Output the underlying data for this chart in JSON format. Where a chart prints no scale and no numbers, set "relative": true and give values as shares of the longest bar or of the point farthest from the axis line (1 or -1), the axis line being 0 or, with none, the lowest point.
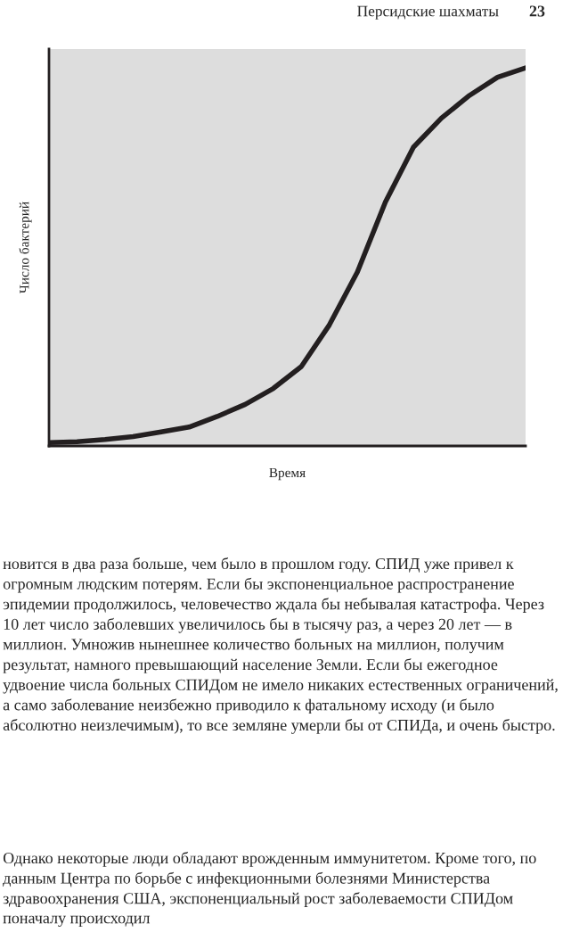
{
  "chart_data": {
    "type": "line",
    "relative": true,
    "title": "Персидские шахматы",
    "xlabel": "Время",
    "ylabel": "Число бактерий",
    "categories": [
      null,
      null,
      null,
      null,
      null,
      null,
      null,
      null,
      null,
      null,
      null,
      null,
      null,
      null,
      null,
      null,
      null,
      null
    ],
    "series": [
      {
        "color": "#231f20",
        "values": [
          0.009,
          0.011,
          0.017,
          0.025,
          0.037,
          0.05,
          0.078,
          0.11,
          0.152,
          0.21,
          0.32,
          0.46,
          0.645,
          0.79,
          0.867,
          0.927,
          0.975,
          1.0
        ]
      }
    ],
    "legend": false,
    "grid": false,
    "annotations": [
      "23",
      "новится в два раза больше, чем было в прошлом году. СПИД уже привел к огромным людским потерям. Если бы экспоненциальное распространение эпидемии продолжилось, человечество ждала бы небывалая катастрофа. Через 10 лет число заболевших увеличилось бы в тысячу раз, а через 20 лет — в миллион. Умножив нынешнее количество больных на миллион, получим результат, намного превышающий население Земли. Если бы ежегодное удвоение числа больных СПИДом не имело никаких естественных ограничений, а само заболевание неизбежно приводило к фатальному исходу (и было абсолютно неизлечимым), то все земляне умерли бы от СПИДа, и очень быстро.",
      "Однако некоторые люди обладают врожденным иммунитетом. Кроме того, по данным Центра по борьбе с инфекционными болезнями Министерства здравоохранения США, экспоненциальный рост заболеваемости СПИДом поначалу происходил"
    ]
  }
}
